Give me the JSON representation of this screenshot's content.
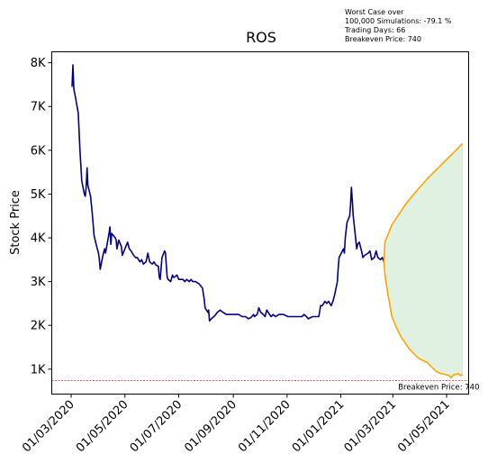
{
  "annotation": {
    "line1": "Worst Case over",
    "line2": "100,000 Simulations: -79.1 %",
    "line3": "Trading Days: 66",
    "line4": "Breakeven Price: 740"
  },
  "chart_data": {
    "type": "line",
    "title": "ROS",
    "xlabel": "",
    "ylabel": "Stock Price",
    "grid": false,
    "ylim": [
      430,
      8250
    ],
    "xlim": [
      "2020-02-08",
      "2021-05-26"
    ],
    "x_ticks": [
      "2020-03-01",
      "2020-05-01",
      "2020-07-01",
      "2020-09-01",
      "2020-11-01",
      "2021-01-01",
      "2021-03-01",
      "2021-05-01"
    ],
    "x_tick_labels": [
      "01/03/2020",
      "01/05/2020",
      "01/07/2020",
      "01/09/2020",
      "01/11/2020",
      "01/01/2021",
      "01/03/2021",
      "01/05/2021"
    ],
    "y_ticks": [
      1000,
      2000,
      3000,
      4000,
      5000,
      6000,
      7000,
      8000
    ],
    "y_tick_labels": [
      "1K",
      "2K",
      "3K",
      "4K",
      "5K",
      "6K",
      "7K",
      "8K"
    ],
    "colors": {
      "history": "#00008b",
      "forecast": "#ffa500",
      "band": "#c8e6c9",
      "breakeven": "#cc0000"
    },
    "series": [
      {
        "points": [
          [
            "2020-03-02",
            7450
          ],
          [
            "2020-03-03",
            7950
          ],
          [
            "2020-03-04",
            7400
          ],
          [
            "2020-03-06",
            7200
          ],
          [
            "2020-03-09",
            6850
          ],
          [
            "2020-03-11",
            6000
          ],
          [
            "2020-03-13",
            5300
          ],
          [
            "2020-03-16",
            5000
          ],
          [
            "2020-03-17",
            4950
          ],
          [
            "2020-03-18",
            5150
          ],
          [
            "2020-03-19",
            5600
          ],
          [
            "2020-03-20",
            5200
          ],
          [
            "2020-03-23",
            4950
          ],
          [
            "2020-03-25",
            4550
          ],
          [
            "2020-03-27",
            4050
          ],
          [
            "2020-03-30",
            3800
          ],
          [
            "2020-04-01",
            3650
          ],
          [
            "2020-04-02",
            3500
          ],
          [
            "2020-04-03",
            3280
          ],
          [
            "2020-04-06",
            3600
          ],
          [
            "2020-04-08",
            3750
          ],
          [
            "2020-04-09",
            3650
          ],
          [
            "2020-04-13",
            4100
          ],
          [
            "2020-04-14",
            4250
          ],
          [
            "2020-04-15",
            3850
          ],
          [
            "2020-04-16",
            4100
          ],
          [
            "2020-04-20",
            4000
          ],
          [
            "2020-04-21",
            3950
          ],
          [
            "2020-04-22",
            3750
          ],
          [
            "2020-04-24",
            3950
          ],
          [
            "2020-04-27",
            3800
          ],
          [
            "2020-04-28",
            3600
          ],
          [
            "2020-04-30",
            3700
          ],
          [
            "2020-05-04",
            3900
          ],
          [
            "2020-05-06",
            3750
          ],
          [
            "2020-05-08",
            3700
          ],
          [
            "2020-05-11",
            3600
          ],
          [
            "2020-05-13",
            3550
          ],
          [
            "2020-05-15",
            3550
          ],
          [
            "2020-05-18",
            3450
          ],
          [
            "2020-05-20",
            3500
          ],
          [
            "2020-05-22",
            3400
          ],
          [
            "2020-05-25",
            3450
          ],
          [
            "2020-05-27",
            3650
          ],
          [
            "2020-05-28",
            3550
          ],
          [
            "2020-05-29",
            3450
          ],
          [
            "2020-06-01",
            3400
          ],
          [
            "2020-06-03",
            3450
          ],
          [
            "2020-06-05",
            3380
          ],
          [
            "2020-06-08",
            3350
          ],
          [
            "2020-06-09",
            3100
          ],
          [
            "2020-06-10",
            3050
          ],
          [
            "2020-06-12",
            3550
          ],
          [
            "2020-06-15",
            3700
          ],
          [
            "2020-06-16",
            3650
          ],
          [
            "2020-06-17",
            3350
          ],
          [
            "2020-06-18",
            3100
          ],
          [
            "2020-06-19",
            3050
          ],
          [
            "2020-06-22",
            3000
          ],
          [
            "2020-06-24",
            3150
          ],
          [
            "2020-06-25",
            3100
          ],
          [
            "2020-06-26",
            3100
          ],
          [
            "2020-06-29",
            3150
          ],
          [
            "2020-07-01",
            3050
          ],
          [
            "2020-07-03",
            3050
          ],
          [
            "2020-07-06",
            3050
          ],
          [
            "2020-07-08",
            3000
          ],
          [
            "2020-07-10",
            3050
          ],
          [
            "2020-07-13",
            3000
          ],
          [
            "2020-07-15",
            3050
          ],
          [
            "2020-07-17",
            3000
          ],
          [
            "2020-07-20",
            3000
          ],
          [
            "2020-07-24",
            2950
          ],
          [
            "2020-07-28",
            2850
          ],
          [
            "2020-07-30",
            2600
          ],
          [
            "2020-07-31",
            2400
          ],
          [
            "2020-08-03",
            2300
          ],
          [
            "2020-08-04",
            2350
          ],
          [
            "2020-08-05",
            2100
          ],
          [
            "2020-08-07",
            2150
          ],
          [
            "2020-08-10",
            2200
          ],
          [
            "2020-08-12",
            2250
          ],
          [
            "2020-08-14",
            2300
          ],
          [
            "2020-08-17",
            2350
          ],
          [
            "2020-08-20",
            2300
          ],
          [
            "2020-08-24",
            2250
          ],
          [
            "2020-08-28",
            2250
          ],
          [
            "2020-09-01",
            2250
          ],
          [
            "2020-09-07",
            2250
          ],
          [
            "2020-09-11",
            2200
          ],
          [
            "2020-09-15",
            2200
          ],
          [
            "2020-09-18",
            2150
          ],
          [
            "2020-09-21",
            2180
          ],
          [
            "2020-09-24",
            2250
          ],
          [
            "2020-09-25",
            2200
          ],
          [
            "2020-09-28",
            2250
          ],
          [
            "2020-09-30",
            2400
          ],
          [
            "2020-10-02",
            2300
          ],
          [
            "2020-10-05",
            2250
          ],
          [
            "2020-10-07",
            2200
          ],
          [
            "2020-10-09",
            2350
          ],
          [
            "2020-10-12",
            2250
          ],
          [
            "2020-10-14",
            2200
          ],
          [
            "2020-10-16",
            2250
          ],
          [
            "2020-10-19",
            2200
          ],
          [
            "2020-10-23",
            2250
          ],
          [
            "2020-10-28",
            2250
          ],
          [
            "2020-11-02",
            2200
          ],
          [
            "2020-11-06",
            2200
          ],
          [
            "2020-11-11",
            2200
          ],
          [
            "2020-11-16",
            2200
          ],
          [
            "2020-11-18",
            2200
          ],
          [
            "2020-11-20",
            2250
          ],
          [
            "2020-11-23",
            2200
          ],
          [
            "2020-11-25",
            2150
          ],
          [
            "2020-11-30",
            2200
          ],
          [
            "2020-12-04",
            2200
          ],
          [
            "2020-12-07",
            2200
          ],
          [
            "2020-12-09",
            2450
          ],
          [
            "2020-12-11",
            2450
          ],
          [
            "2020-12-14",
            2550
          ],
          [
            "2020-12-16",
            2500
          ],
          [
            "2020-12-18",
            2550
          ],
          [
            "2020-12-21",
            2450
          ],
          [
            "2020-12-23",
            2550
          ],
          [
            "2020-12-25",
            2700
          ],
          [
            "2020-12-28",
            3000
          ],
          [
            "2020-12-29",
            3300
          ],
          [
            "2020-12-30",
            3550
          ],
          [
            "2021-01-04",
            3750
          ],
          [
            "2021-01-05",
            3650
          ],
          [
            "2021-01-06",
            4000
          ],
          [
            "2021-01-08",
            4350
          ],
          [
            "2021-01-11",
            4500
          ],
          [
            "2021-01-12",
            4750
          ],
          [
            "2021-01-13",
            5150
          ],
          [
            "2021-01-14",
            4850
          ],
          [
            "2021-01-15",
            4500
          ],
          [
            "2021-01-18",
            3950
          ],
          [
            "2021-01-19",
            3750
          ],
          [
            "2021-01-20",
            3850
          ],
          [
            "2021-01-22",
            3900
          ],
          [
            "2021-01-25",
            3650
          ],
          [
            "2021-01-26",
            3550
          ],
          [
            "2021-01-28",
            3600
          ],
          [
            "2021-02-01",
            3650
          ],
          [
            "2021-02-03",
            3700
          ],
          [
            "2021-02-05",
            3500
          ],
          [
            "2021-02-08",
            3550
          ],
          [
            "2021-02-10",
            3700
          ],
          [
            "2021-02-12",
            3550
          ],
          [
            "2021-02-15",
            3500
          ],
          [
            "2021-02-17",
            3550
          ],
          [
            "2021-02-19",
            3450
          ]
        ]
      },
      {
        "band_upper": [
          [
            "2021-02-19",
            3450
          ],
          [
            "2021-02-20",
            3900
          ],
          [
            "2021-02-24",
            4100
          ],
          [
            "2021-02-28",
            4300
          ],
          [
            "2021-03-05",
            4450
          ],
          [
            "2021-03-10",
            4600
          ],
          [
            "2021-03-15",
            4750
          ],
          [
            "2021-03-20",
            4880
          ],
          [
            "2021-03-25",
            5000
          ],
          [
            "2021-03-30",
            5120
          ],
          [
            "2021-04-04",
            5230
          ],
          [
            "2021-04-09",
            5350
          ],
          [
            "2021-04-14",
            5450
          ],
          [
            "2021-04-19",
            5550
          ],
          [
            "2021-04-24",
            5650
          ],
          [
            "2021-04-29",
            5750
          ],
          [
            "2021-05-04",
            5850
          ],
          [
            "2021-05-09",
            5950
          ],
          [
            "2021-05-14",
            6050
          ],
          [
            "2021-05-17",
            6120
          ],
          [
            "2021-05-19",
            6150
          ]
        ],
        "band_lower": [
          [
            "2021-02-19",
            3450
          ],
          [
            "2021-02-20",
            3150
          ],
          [
            "2021-02-24",
            2650
          ],
          [
            "2021-02-28",
            2200
          ],
          [
            "2021-03-05",
            1950
          ],
          [
            "2021-03-10",
            1750
          ],
          [
            "2021-03-15",
            1600
          ],
          [
            "2021-03-20",
            1450
          ],
          [
            "2021-03-25",
            1350
          ],
          [
            "2021-03-30",
            1250
          ],
          [
            "2021-04-04",
            1200
          ],
          [
            "2021-04-09",
            1150
          ],
          [
            "2021-04-14",
            1050
          ],
          [
            "2021-04-19",
            950
          ],
          [
            "2021-04-24",
            900
          ],
          [
            "2021-04-29",
            880
          ],
          [
            "2021-05-04",
            850
          ],
          [
            "2021-05-06",
            800
          ],
          [
            "2021-05-09",
            870
          ],
          [
            "2021-05-12",
            880
          ],
          [
            "2021-05-14",
            900
          ],
          [
            "2021-05-17",
            850
          ],
          [
            "2021-05-19",
            880
          ]
        ]
      }
    ],
    "breakeven": {
      "value": 740,
      "label": "Breakeven Price: 740"
    }
  }
}
